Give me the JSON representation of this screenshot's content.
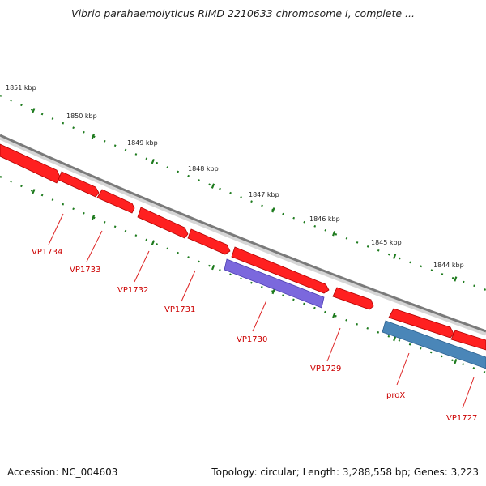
{
  "title": "Vibrio parahaemolyticus RIMD 2210633 chromosome I, complete ...",
  "footer": {
    "accession": "Accession: NC_004603",
    "summary": "Topology: circular; Length: 3,288,558 bp; Genes: 3,223"
  },
  "colors": {
    "gene": "#ff0000",
    "gene_label": "#cc0000",
    "backbone": "#8a8a8a",
    "tick": "#1e7b1e",
    "tick_label": "#222222",
    "rna_purple": "#7b68dd",
    "rna_blue": "#4a86b8"
  },
  "ruler_labels": [
    "1851 kbp",
    "1850 kbp",
    "1849 kbp",
    "1848 kbp",
    "1847 kbp",
    "1846 kbp",
    "1845 kbp",
    "1844 kbp"
  ],
  "genes": [
    {
      "label": "VP1734",
      "type": "gene"
    },
    {
      "label": "VP1733",
      "type": "gene"
    },
    {
      "label": "VP1732",
      "type": "gene"
    },
    {
      "label": "VP1731",
      "type": "gene"
    },
    {
      "label": "VP1730",
      "type": "rna_purple"
    },
    {
      "label": "VP1729",
      "type": "gene"
    },
    {
      "label": "proX",
      "type": "rna_blue"
    },
    {
      "label": "VP1727",
      "type": "gene"
    }
  ]
}
